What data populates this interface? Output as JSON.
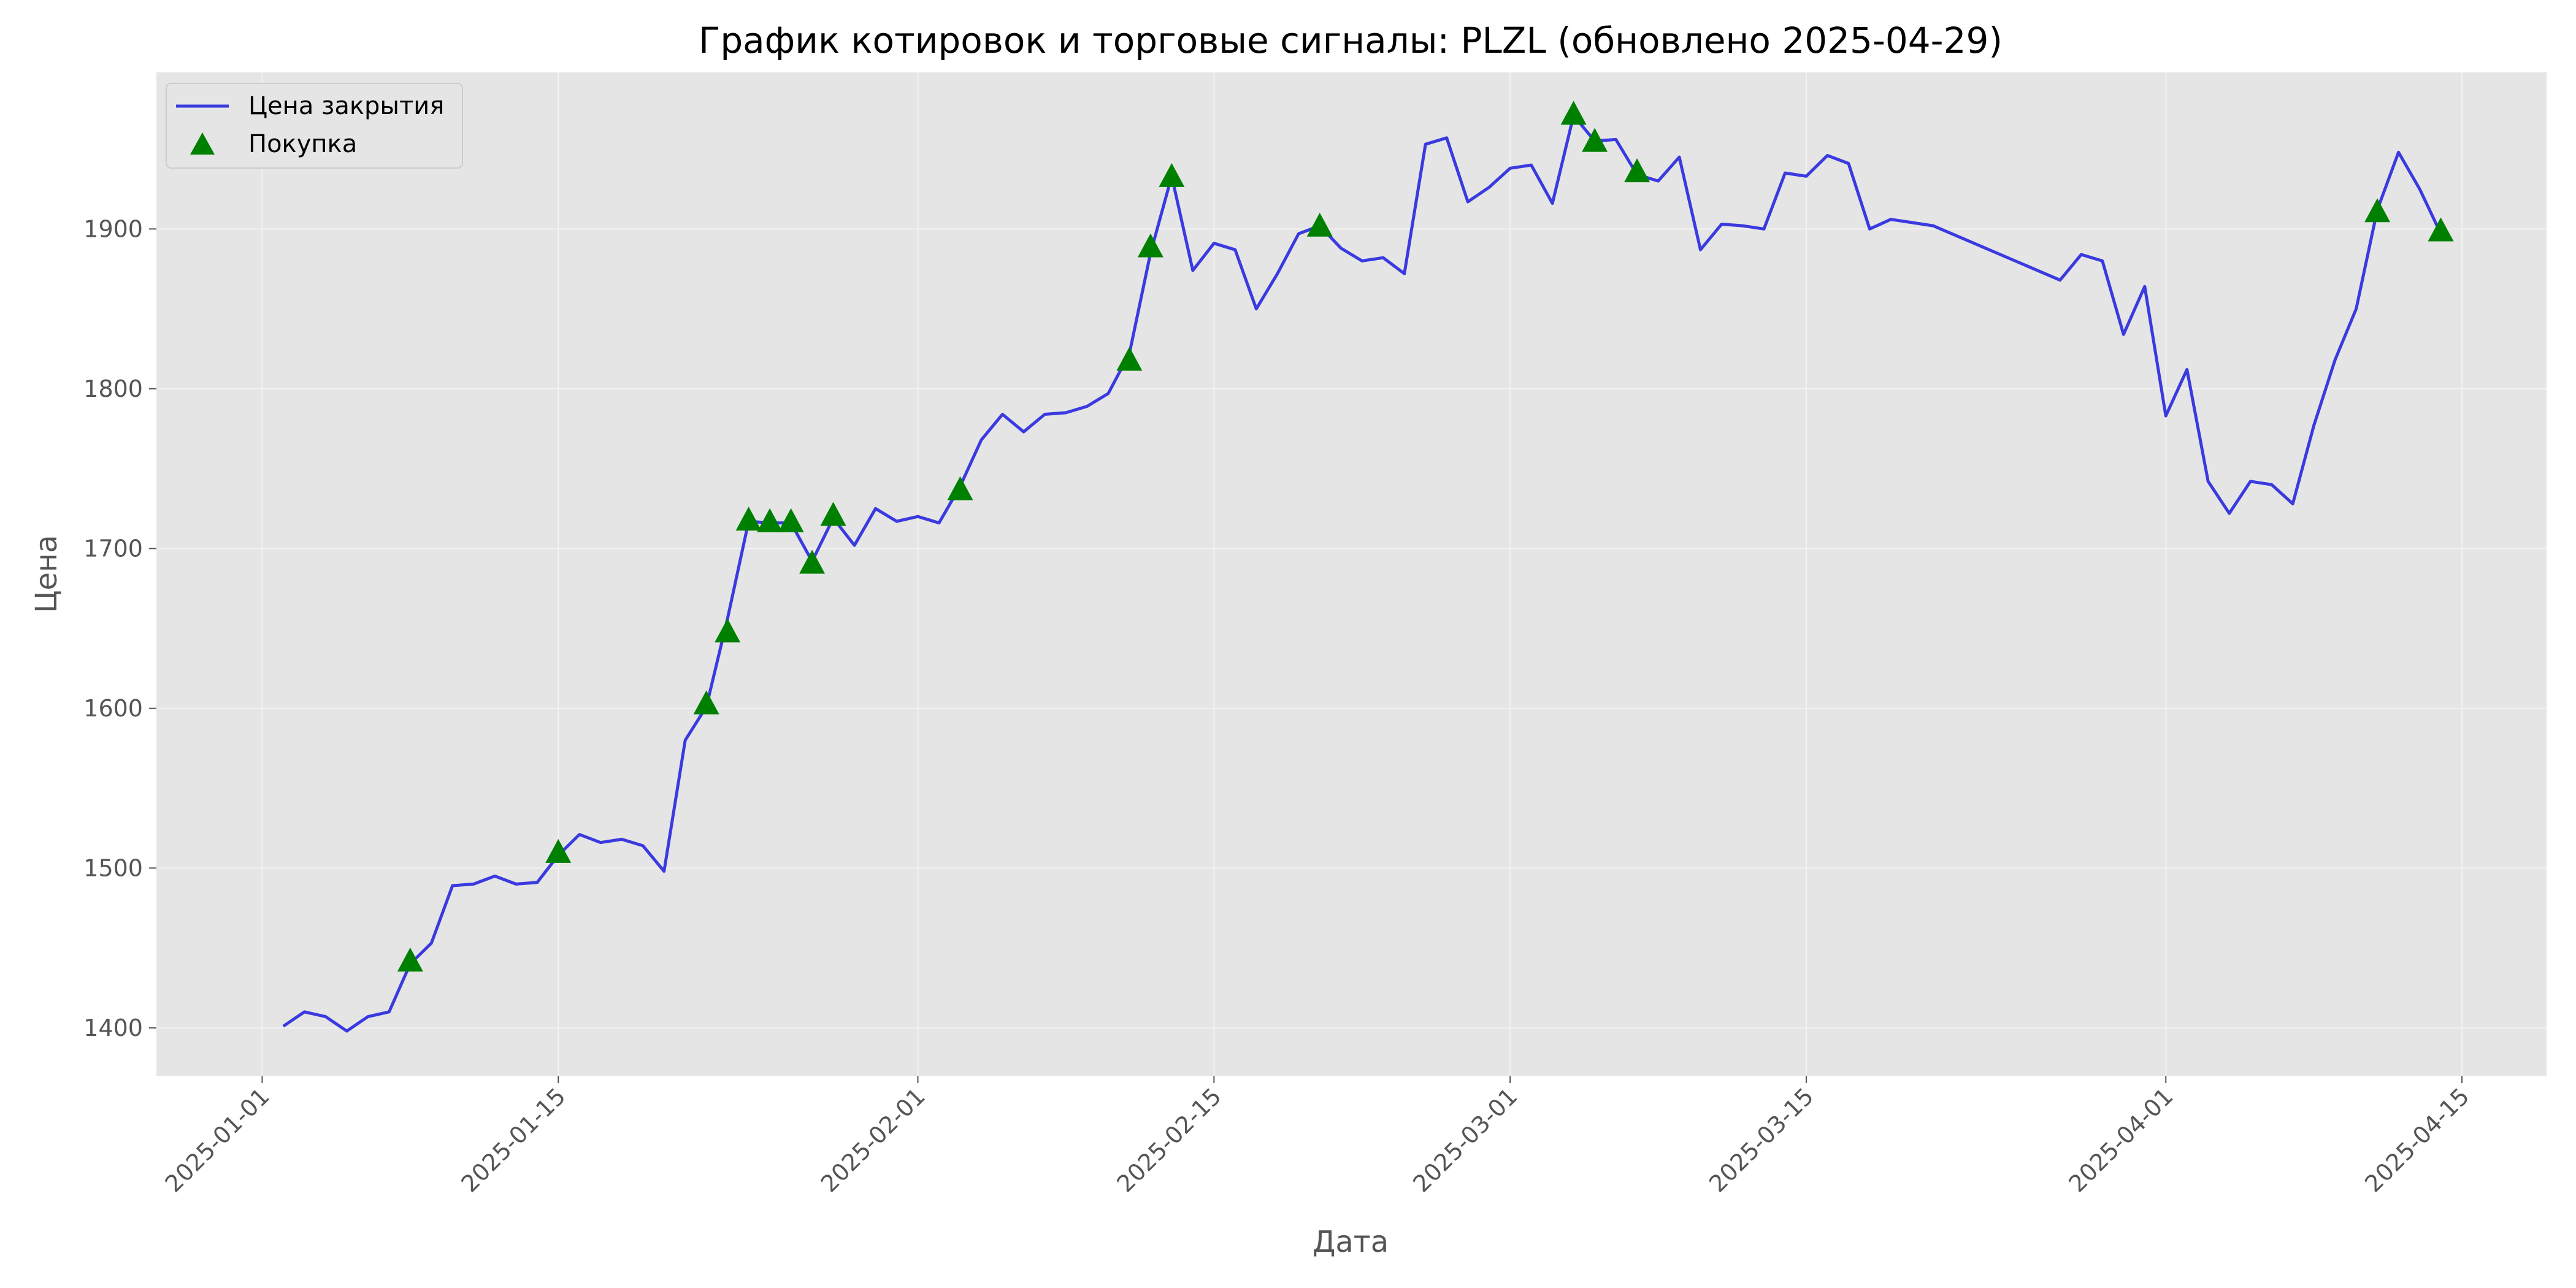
{
  "chart_data": {
    "type": "line",
    "title": "График котировок и торговые сигналы: PLZL (обновлено 2025-04-29)",
    "xlabel": "Дата",
    "ylabel": "Цена",
    "xlim": [
      "2024-12-27",
      "2025-04-19"
    ],
    "ylim": [
      1370,
      1998
    ],
    "x_ticks": [
      "2025-01-01",
      "2025-01-15",
      "2025-02-01",
      "2025-02-15",
      "2025-03-01",
      "2025-03-15",
      "2025-04-01",
      "2025-04-15"
    ],
    "y_ticks": [
      1400,
      1500,
      1600,
      1700,
      1800,
      1900
    ],
    "grid": true,
    "legend_position": "top-left",
    "colors": {
      "line": "#3a3ae0",
      "marker": "#008000",
      "background": "#e5e5e5",
      "grid": "#f2f2f2"
    },
    "series": [
      {
        "name": "Цена закрытия",
        "kind": "line",
        "points": [
          [
            "2025-01-02",
            1401
          ],
          [
            "2025-01-03",
            1410
          ],
          [
            "2025-01-04",
            1407
          ],
          [
            "2025-01-05",
            1398
          ],
          [
            "2025-01-06",
            1407
          ],
          [
            "2025-01-07",
            1410
          ],
          [
            "2025-01-08",
            1440
          ],
          [
            "2025-01-09",
            1453
          ],
          [
            "2025-01-10",
            1489
          ],
          [
            "2025-01-11",
            1490
          ],
          [
            "2025-01-12",
            1495
          ],
          [
            "2025-01-13",
            1490
          ],
          [
            "2025-01-14",
            1491
          ],
          [
            "2025-01-15",
            1508
          ],
          [
            "2025-01-16",
            1521
          ],
          [
            "2025-01-17",
            1516
          ],
          [
            "2025-01-18",
            1518
          ],
          [
            "2025-01-19",
            1514
          ],
          [
            "2025-01-20",
            1498
          ],
          [
            "2025-01-21",
            1580
          ],
          [
            "2025-01-22",
            1601
          ],
          [
            "2025-01-23",
            1656
          ],
          [
            "2025-01-24",
            1717
          ],
          [
            "2025-01-25",
            1716
          ],
          [
            "2025-01-26",
            1716
          ],
          [
            "2025-01-27",
            1692
          ],
          [
            "2025-01-28",
            1719
          ],
          [
            "2025-01-29",
            1702
          ],
          [
            "2025-01-30",
            1725
          ],
          [
            "2025-01-31",
            1717
          ],
          [
            "2025-02-01",
            1720
          ],
          [
            "2025-02-02",
            1716
          ],
          [
            "2025-02-03",
            1739
          ],
          [
            "2025-02-04",
            1768
          ],
          [
            "2025-02-05",
            1784
          ],
          [
            "2025-02-06",
            1773
          ],
          [
            "2025-02-07",
            1784
          ],
          [
            "2025-02-08",
            1785
          ],
          [
            "2025-02-09",
            1789
          ],
          [
            "2025-02-10",
            1797
          ],
          [
            "2025-02-11",
            1822
          ],
          [
            "2025-02-12",
            1885
          ],
          [
            "2025-02-13",
            1933
          ],
          [
            "2025-02-14",
            1874
          ],
          [
            "2025-02-15",
            1891
          ],
          [
            "2025-02-16",
            1887
          ],
          [
            "2025-02-17",
            1850
          ],
          [
            "2025-02-18",
            1872
          ],
          [
            "2025-02-19",
            1897
          ],
          [
            "2025-02-20",
            1902
          ],
          [
            "2025-02-21",
            1888
          ],
          [
            "2025-02-22",
            1880
          ],
          [
            "2025-02-23",
            1882
          ],
          [
            "2025-02-24",
            1872
          ],
          [
            "2025-02-25",
            1953
          ],
          [
            "2025-02-26",
            1957
          ],
          [
            "2025-02-27",
            1917
          ],
          [
            "2025-02-28",
            1926
          ],
          [
            "2025-03-01",
            1938
          ],
          [
            "2025-03-02",
            1940
          ],
          [
            "2025-03-03",
            1916
          ],
          [
            "2025-03-04",
            1971
          ],
          [
            "2025-03-05",
            1955
          ],
          [
            "2025-03-06",
            1956
          ],
          [
            "2025-03-07",
            1934
          ],
          [
            "2025-03-08",
            1930
          ],
          [
            "2025-03-09",
            1945
          ],
          [
            "2025-03-10",
            1887
          ],
          [
            "2025-03-11",
            1903
          ],
          [
            "2025-03-12",
            1902
          ],
          [
            "2025-03-13",
            1900
          ],
          [
            "2025-03-14",
            1935
          ],
          [
            "2025-03-15",
            1933
          ],
          [
            "2025-03-16",
            1946
          ],
          [
            "2025-03-17",
            1941
          ],
          [
            "2025-03-18",
            1900
          ],
          [
            "2025-03-19",
            1906
          ],
          [
            "2025-03-20",
            1904
          ],
          [
            "2025-03-21",
            1902
          ],
          [
            "2025-03-27",
            1868
          ],
          [
            "2025-03-28",
            1884
          ],
          [
            "2025-03-29",
            1880
          ],
          [
            "2025-03-30",
            1834
          ],
          [
            "2025-03-31",
            1864
          ],
          [
            "2025-04-01",
            1783
          ],
          [
            "2025-04-02",
            1812
          ],
          [
            "2025-04-03",
            1742
          ],
          [
            "2025-04-04",
            1722
          ],
          [
            "2025-04-05",
            1742
          ],
          [
            "2025-04-06",
            1740
          ],
          [
            "2025-04-07",
            1728
          ],
          [
            "2025-04-08",
            1777
          ],
          [
            "2025-04-09",
            1818
          ],
          [
            "2025-04-10",
            1850
          ],
          [
            "2025-04-11",
            1912
          ],
          [
            "2025-04-12",
            1948
          ],
          [
            "2025-04-13",
            1925
          ],
          [
            "2025-04-14",
            1897
          ]
        ]
      },
      {
        "name": "Покупка",
        "kind": "scatter",
        "marker": "triangle-up",
        "points": [
          [
            "2025-01-08",
            1441
          ],
          [
            "2025-01-15",
            1509
          ],
          [
            "2025-01-22",
            1602
          ],
          [
            "2025-01-23",
            1647
          ],
          [
            "2025-01-24",
            1717
          ],
          [
            "2025-01-25",
            1716
          ],
          [
            "2025-01-26",
            1716
          ],
          [
            "2025-01-27",
            1690
          ],
          [
            "2025-01-28",
            1720
          ],
          [
            "2025-02-03",
            1736
          ],
          [
            "2025-02-11",
            1817
          ],
          [
            "2025-02-12",
            1888
          ],
          [
            "2025-02-13",
            1932
          ],
          [
            "2025-02-20",
            1901
          ],
          [
            "2025-03-04",
            1971
          ],
          [
            "2025-03-05",
            1954
          ],
          [
            "2025-03-07",
            1935
          ],
          [
            "2025-04-11",
            1910
          ],
          [
            "2025-04-14",
            1898
          ]
        ]
      }
    ]
  }
}
